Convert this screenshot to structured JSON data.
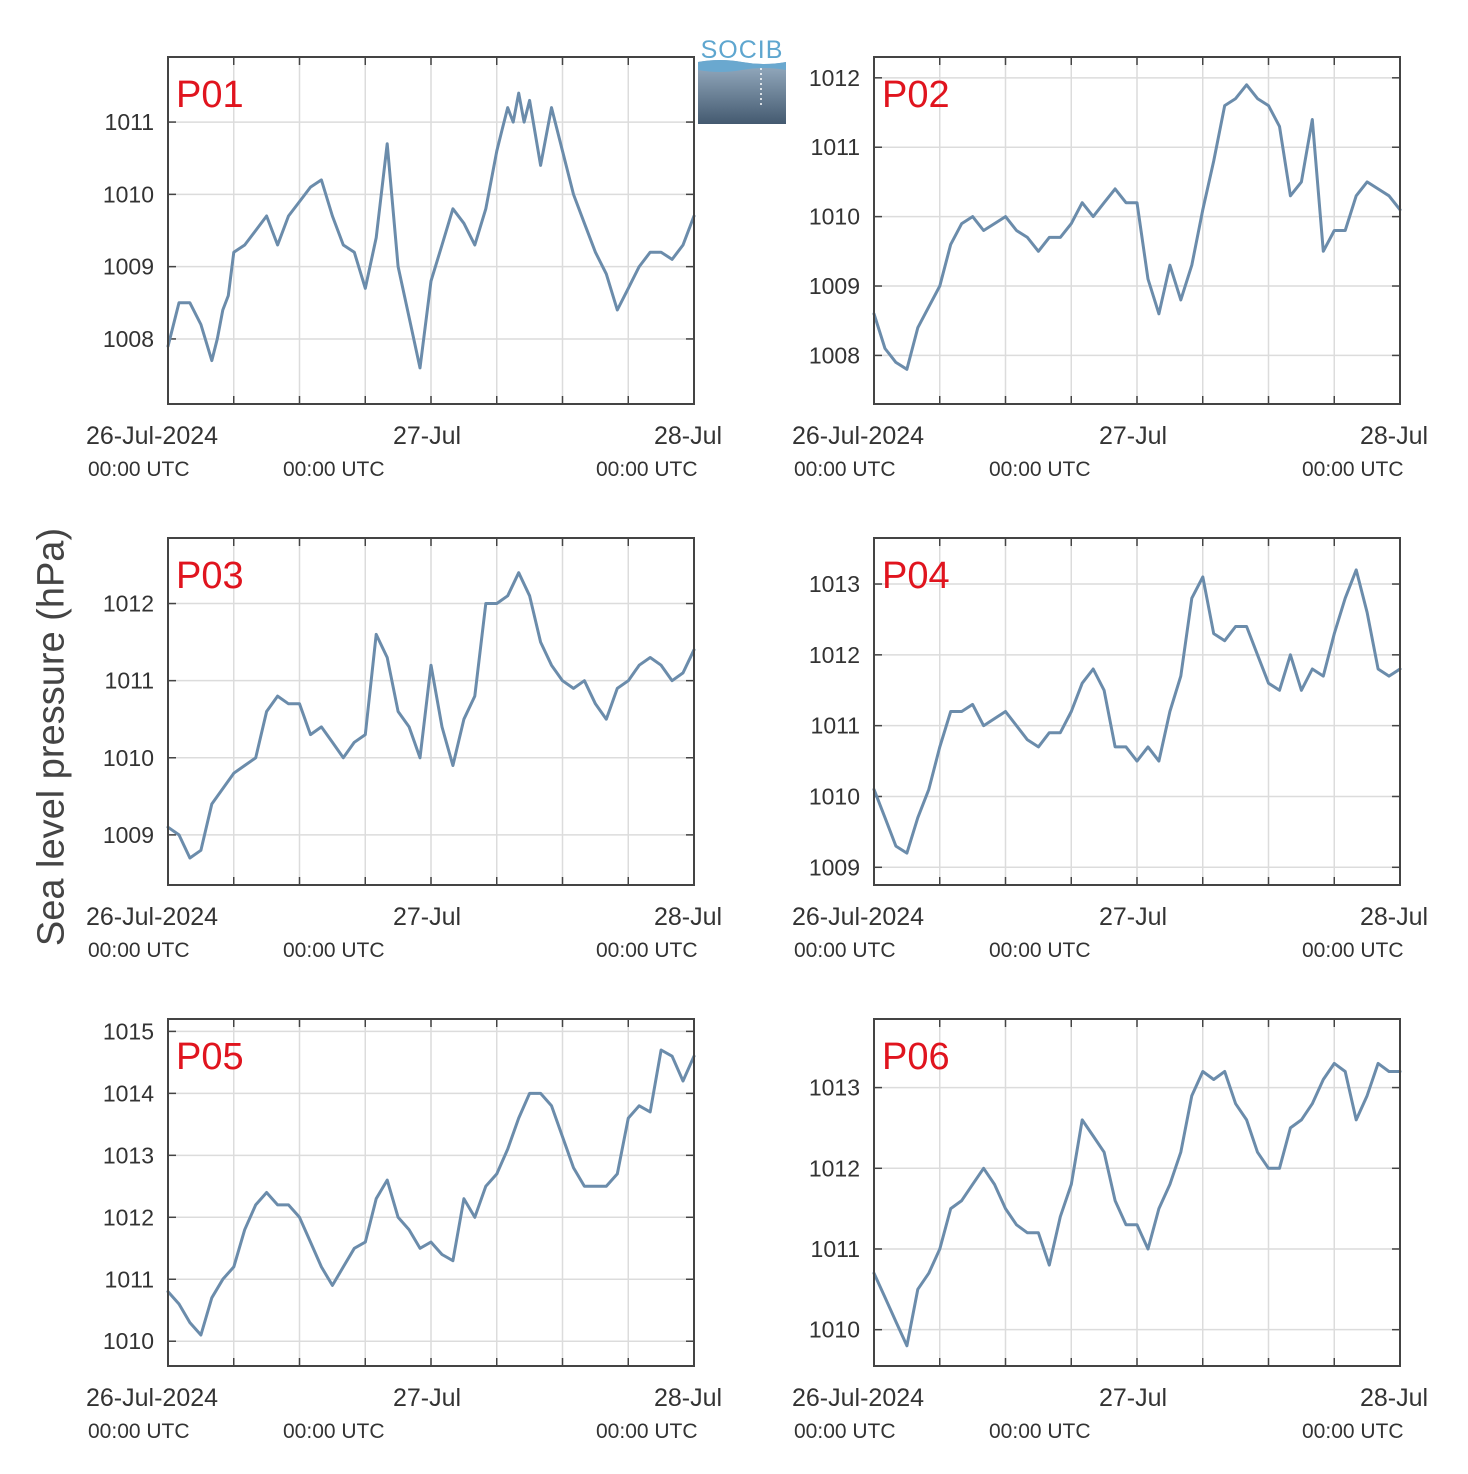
{
  "figure": {
    "ylabel": "Sea level pressure (hPa)",
    "logo_text": "SOCIB",
    "x_tick_labels": [
      {
        "date": "26-Jul-2024",
        "time": "00:00 UTC"
      },
      {
        "date": "27-Jul",
        "time": "00:00 UTC"
      },
      {
        "date": "28-Jul",
        "time": "00:00 UTC"
      }
    ],
    "line_color": "#6b8cab",
    "label_color": "#e0141e"
  },
  "chart_data": [
    {
      "type": "line",
      "title": "P01",
      "ylabel": "Sea level pressure (hPa)",
      "x_range": [
        "2024-07-26 00:00",
        "2024-07-28 00:00"
      ],
      "grid": true,
      "ylim": [
        1007.1,
        1011.9
      ],
      "yticks": [
        1008,
        1009,
        1010,
        1011
      ],
      "x_hours": [
        0,
        1,
        2,
        3,
        4,
        4.5,
        5,
        5.5,
        6,
        7,
        8,
        9,
        10,
        11,
        12,
        13,
        14,
        15,
        16,
        17,
        18,
        19,
        20,
        21,
        22,
        23,
        24,
        25,
        26,
        27,
        28,
        29,
        30,
        30.5,
        31,
        31.5,
        32,
        32.5,
        33,
        34,
        35,
        36,
        37,
        38,
        39,
        40,
        41,
        42,
        43,
        44,
        45,
        46,
        47,
        48
      ],
      "y": [
        1007.9,
        1008.5,
        1008.5,
        1008.2,
        1007.7,
        1008.0,
        1008.4,
        1008.6,
        1009.2,
        1009.3,
        1009.5,
        1009.7,
        1009.3,
        1009.7,
        1009.9,
        1010.1,
        1010.2,
        1009.7,
        1009.3,
        1009.2,
        1008.7,
        1009.4,
        1010.7,
        1009.0,
        1008.3,
        1007.6,
        1008.8,
        1009.3,
        1009.8,
        1009.6,
        1009.3,
        1009.8,
        1010.6,
        1010.9,
        1011.2,
        1011.0,
        1011.4,
        1011.0,
        1011.3,
        1010.4,
        1011.2,
        1010.6,
        1010.0,
        1009.6,
        1009.2,
        1008.9,
        1008.4,
        1008.7,
        1009.0,
        1009.2,
        1009.2,
        1009.1,
        1009.3,
        1009.7
      ]
    },
    {
      "type": "line",
      "title": "P02",
      "ylabel": "Sea level pressure (hPa)",
      "x_range": [
        "2024-07-26 00:00",
        "2024-07-28 00:00"
      ],
      "grid": true,
      "ylim": [
        1007.3,
        1012.3
      ],
      "yticks": [
        1008,
        1009,
        1010,
        1011,
        1012
      ],
      "x_hours": [
        0,
        1,
        2,
        3,
        4,
        5,
        6,
        7,
        8,
        9,
        10,
        11,
        12,
        13,
        14,
        15,
        16,
        17,
        18,
        19,
        20,
        21,
        22,
        23,
        24,
        25,
        26,
        27,
        28,
        29,
        30,
        31,
        32,
        33,
        34,
        35,
        36,
        37,
        38,
        39,
        40,
        41,
        42,
        43,
        44,
        45,
        46,
        47,
        48
      ],
      "y": [
        1008.6,
        1008.1,
        1007.9,
        1007.8,
        1008.4,
        1008.7,
        1009.0,
        1009.6,
        1009.9,
        1010.0,
        1009.8,
        1009.9,
        1010.0,
        1009.8,
        1009.7,
        1009.5,
        1009.7,
        1009.7,
        1009.9,
        1010.2,
        1010.0,
        1010.2,
        1010.4,
        1010.2,
        1010.2,
        1009.1,
        1008.6,
        1009.3,
        1008.8,
        1009.3,
        1010.1,
        1010.8,
        1011.6,
        1011.7,
        1011.9,
        1011.7,
        1011.6,
        1011.3,
        1010.3,
        1010.5,
        1011.4,
        1009.5,
        1009.8,
        1009.8,
        1010.3,
        1010.5,
        1010.4,
        1010.3,
        1010.1
      ]
    },
    {
      "type": "line",
      "title": "P03",
      "ylabel": "Sea level pressure (hPa)",
      "x_range": [
        "2024-07-26 00:00",
        "2024-07-28 00:00"
      ],
      "grid": true,
      "ylim": [
        1008.35,
        1012.85
      ],
      "yticks": [
        1009,
        1010,
        1011,
        1012
      ],
      "x_hours": [
        0,
        1,
        2,
        3,
        4,
        5,
        6,
        7,
        8,
        9,
        10,
        11,
        12,
        13,
        14,
        15,
        16,
        17,
        18,
        19,
        20,
        21,
        22,
        23,
        24,
        25,
        26,
        27,
        28,
        29,
        30,
        31,
        32,
        33,
        34,
        35,
        36,
        37,
        38,
        39,
        40,
        41,
        42,
        43,
        44,
        45,
        46,
        47,
        48
      ],
      "y": [
        1009.1,
        1009.0,
        1008.7,
        1008.8,
        1009.4,
        1009.6,
        1009.8,
        1009.9,
        1010.0,
        1010.6,
        1010.8,
        1010.7,
        1010.7,
        1010.3,
        1010.4,
        1010.2,
        1010.0,
        1010.2,
        1010.3,
        1011.6,
        1011.3,
        1010.6,
        1010.4,
        1010.0,
        1011.2,
        1010.4,
        1009.9,
        1010.5,
        1010.8,
        1012.0,
        1012.0,
        1012.1,
        1012.4,
        1012.1,
        1011.5,
        1011.2,
        1011.0,
        1010.9,
        1011.0,
        1010.7,
        1010.5,
        1010.9,
        1011.0,
        1011.2,
        1011.3,
        1011.2,
        1011.0,
        1011.1,
        1011.4
      ]
    },
    {
      "type": "line",
      "title": "P04",
      "ylabel": "Sea level pressure (hPa)",
      "x_range": [
        "2024-07-26 00:00",
        "2024-07-28 00:00"
      ],
      "grid": true,
      "ylim": [
        1008.75,
        1013.65
      ],
      "yticks": [
        1009,
        1010,
        1011,
        1012,
        1013
      ],
      "x_hours": [
        0,
        1,
        2,
        3,
        4,
        5,
        6,
        7,
        8,
        9,
        10,
        11,
        12,
        13,
        14,
        15,
        16,
        17,
        18,
        19,
        20,
        21,
        22,
        23,
        24,
        25,
        26,
        27,
        28,
        29,
        30,
        31,
        32,
        33,
        34,
        35,
        36,
        37,
        38,
        39,
        40,
        41,
        42,
        43,
        44,
        45,
        46,
        47,
        48
      ],
      "y": [
        1010.1,
        1009.7,
        1009.3,
        1009.2,
        1009.7,
        1010.1,
        1010.7,
        1011.2,
        1011.2,
        1011.3,
        1011.0,
        1011.1,
        1011.2,
        1011.0,
        1010.8,
        1010.7,
        1010.9,
        1010.9,
        1011.2,
        1011.6,
        1011.8,
        1011.5,
        1010.7,
        1010.7,
        1010.5,
        1010.7,
        1010.5,
        1011.2,
        1011.7,
        1012.8,
        1013.1,
        1012.3,
        1012.2,
        1012.4,
        1012.4,
        1012.0,
        1011.6,
        1011.5,
        1012.0,
        1011.5,
        1011.8,
        1011.7,
        1012.3,
        1012.8,
        1013.2,
        1012.6,
        1011.8,
        1011.7,
        1011.8
      ]
    },
    {
      "type": "line",
      "title": "P05",
      "ylabel": "Sea level pressure (hPa)",
      "x_range": [
        "2024-07-26 00:00",
        "2024-07-28 00:00"
      ],
      "grid": true,
      "ylim": [
        1009.6,
        1015.2
      ],
      "yticks": [
        1010,
        1011,
        1012,
        1013,
        1014,
        1015
      ],
      "x_hours": [
        0,
        1,
        2,
        3,
        4,
        5,
        6,
        7,
        8,
        9,
        10,
        11,
        12,
        13,
        14,
        15,
        16,
        17,
        18,
        19,
        20,
        21,
        22,
        23,
        24,
        25,
        26,
        27,
        28,
        29,
        30,
        31,
        32,
        33,
        34,
        35,
        36,
        37,
        38,
        39,
        40,
        41,
        42,
        43,
        44,
        45,
        46,
        47,
        48
      ],
      "y": [
        1010.8,
        1010.6,
        1010.3,
        1010.1,
        1010.7,
        1011.0,
        1011.2,
        1011.8,
        1012.2,
        1012.4,
        1012.2,
        1012.2,
        1012.0,
        1011.6,
        1011.2,
        1010.9,
        1011.2,
        1011.5,
        1011.6,
        1012.3,
        1012.6,
        1012.0,
        1011.8,
        1011.5,
        1011.6,
        1011.4,
        1011.3,
        1012.3,
        1012.0,
        1012.5,
        1012.7,
        1013.1,
        1013.6,
        1014.0,
        1014.0,
        1013.8,
        1013.3,
        1012.8,
        1012.5,
        1012.5,
        1012.5,
        1012.7,
        1013.6,
        1013.8,
        1013.7,
        1014.7,
        1014.6,
        1014.2,
        1014.6
      ]
    },
    {
      "type": "line",
      "title": "P06",
      "ylabel": "Sea level pressure (hPa)",
      "x_range": [
        "2024-07-26 00:00",
        "2024-07-28 00:00"
      ],
      "grid": true,
      "ylim": [
        1009.55,
        1013.85
      ],
      "yticks": [
        1010,
        1011,
        1012,
        1013
      ],
      "x_hours": [
        0,
        1,
        2,
        3,
        4,
        5,
        6,
        7,
        8,
        9,
        10,
        11,
        12,
        13,
        14,
        15,
        16,
        17,
        18,
        19,
        20,
        21,
        22,
        23,
        24,
        25,
        26,
        27,
        28,
        29,
        30,
        31,
        32,
        33,
        34,
        35,
        36,
        37,
        38,
        39,
        40,
        41,
        42,
        43,
        44,
        45,
        46,
        47,
        48
      ],
      "y": [
        1010.7,
        1010.4,
        1010.1,
        1009.8,
        1010.5,
        1010.7,
        1011.0,
        1011.5,
        1011.6,
        1011.8,
        1012.0,
        1011.8,
        1011.5,
        1011.3,
        1011.2,
        1011.2,
        1010.8,
        1011.4,
        1011.8,
        1012.6,
        1012.4,
        1012.2,
        1011.6,
        1011.3,
        1011.3,
        1011.0,
        1011.5,
        1011.8,
        1012.2,
        1012.9,
        1013.2,
        1013.1,
        1013.2,
        1012.8,
        1012.6,
        1012.2,
        1012.0,
        1012.0,
        1012.5,
        1012.6,
        1012.8,
        1013.1,
        1013.3,
        1013.2,
        1012.6,
        1012.9,
        1013.3,
        1013.2,
        1013.2
      ]
    }
  ]
}
